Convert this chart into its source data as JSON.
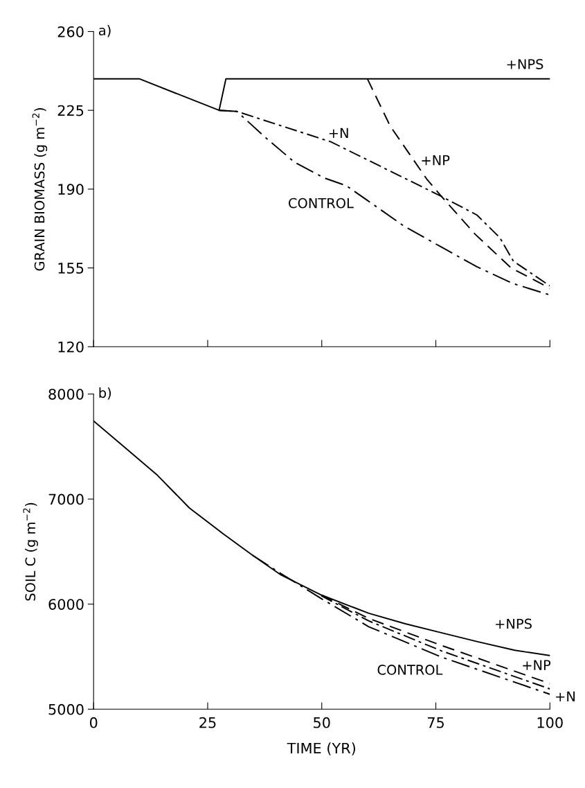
{
  "chart_data": [
    {
      "type": "line",
      "ylabel": "GRAIN BIOMASS (g m$^{−2}$)",
      "xlim": [
        0,
        100
      ],
      "xticks": [
        0,
        25,
        50,
        75,
        100
      ],
      "ylim": [
        120,
        260
      ],
      "yticks": [
        120,
        155,
        190,
        225,
        260
      ],
      "tick_labels": "y",
      "grid": false,
      "legend": false,
      "marker": "none",
      "series": [
        {
          "name": "+NPS",
          "color": "#000000",
          "line_style": "solid",
          "x": [
            0,
            10,
            27.5,
            29,
            100
          ],
          "values": [
            239,
            239,
            225,
            239,
            239
          ]
        },
        {
          "name": "+NP",
          "color": "#000000",
          "line_style": "dashed",
          "x": [
            60,
            65,
            73,
            76.4,
            83.6,
            91.5,
            100
          ],
          "values": [
            239,
            218,
            194.5,
            186.4,
            170,
            155,
            146
          ]
        },
        {
          "name": "+N",
          "color": "#000000",
          "line_style": "dashdot",
          "x": [
            27.5,
            31.4,
            52,
            68,
            76,
            84,
            89,
            92,
            100
          ],
          "values": [
            225,
            224.5,
            211,
            195,
            187,
            178.5,
            168.5,
            158,
            147
          ]
        },
        {
          "name": "CONTROL",
          "color": "#000000",
          "line_style": "longdashdot",
          "x": [
            27.5,
            31.4,
            37.8,
            44,
            50.5,
            55.4,
            60,
            68,
            76,
            84,
            92,
            100
          ],
          "values": [
            225,
            224.5,
            212.7,
            202,
            195,
            191.5,
            185,
            173.6,
            164.5,
            155.5,
            148,
            143
          ]
        }
      ],
      "annotations": [
        "a)"
      ]
    },
    {
      "type": "line",
      "xlabel": "TIME (YR)",
      "ylabel": "SOIL C (g m$^{−2}$)",
      "xlim": [
        0,
        100
      ],
      "xticks": [
        0,
        25,
        50,
        75,
        100
      ],
      "ylim": [
        5000,
        8000
      ],
      "yticks": [
        5000,
        6000,
        7000,
        8000
      ],
      "grid": false,
      "legend": false,
      "marker": "none",
      "series": [
        {
          "name": "+NPS",
          "color": "#000000",
          "line_style": "solid",
          "x": [
            0,
            6.6,
            14,
            21,
            28.3,
            34.8,
            41.1,
            49.9,
            60.3,
            68.3,
            76.3,
            84.3,
            92.3,
            100
          ],
          "values": [
            7743,
            7500,
            7226,
            6915,
            6673,
            6466,
            6277,
            6087,
            5913,
            5813,
            5727,
            5641,
            5561,
            5510
          ]
        },
        {
          "name": "+NP",
          "color": "#000000",
          "line_style": "dashed",
          "x": [
            49.9,
            60.3,
            76.3,
            100
          ],
          "values": [
            6087,
            5864,
            5606,
            5244
          ]
        },
        {
          "name": "+N",
          "color": "#000000",
          "line_style": "dashdot",
          "x": [
            49.9,
            60.3,
            76.3,
            100
          ],
          "values": [
            6080,
            5840,
            5554,
            5193
          ]
        },
        {
          "name": "CONTROL",
          "color": "#000000",
          "line_style": "longdashdot",
          "x": [
            34.8,
            41.1,
            50,
            60.3,
            76.3,
            100
          ],
          "values": [
            6466,
            6290,
            6050,
            5785,
            5495,
            5142
          ]
        }
      ],
      "annotations": [
        "b)"
      ]
    }
  ]
}
